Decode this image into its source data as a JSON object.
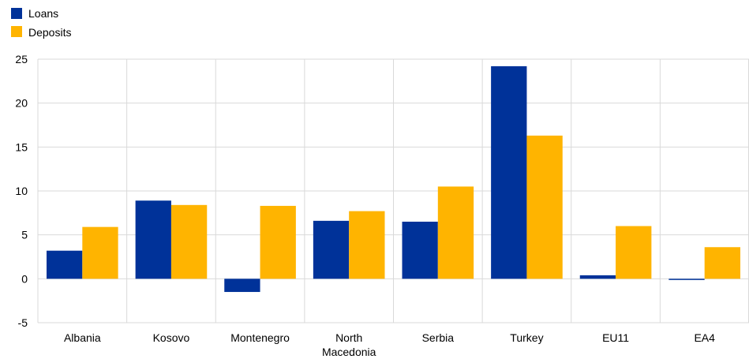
{
  "chart_data": {
    "type": "bar",
    "categories": [
      "Albania",
      "Kosovo",
      "Montenegro",
      "North Macedonia",
      "Serbia",
      "Turkey",
      "EU11",
      "EA4"
    ],
    "category_lines": [
      [
        "Albania"
      ],
      [
        "Kosovo"
      ],
      [
        "Montenegro"
      ],
      [
        "North",
        "Macedonia"
      ],
      [
        "Serbia"
      ],
      [
        "Turkey"
      ],
      [
        "EU11"
      ],
      [
        "EA4"
      ]
    ],
    "series": [
      {
        "name": "Loans",
        "color": "#003299",
        "values": [
          3.2,
          8.9,
          -1.5,
          6.6,
          6.5,
          24.2,
          0.4,
          -0.1
        ]
      },
      {
        "name": "Deposits",
        "color": "#FFB400",
        "values": [
          5.9,
          8.4,
          8.3,
          7.7,
          10.5,
          16.3,
          6.0,
          3.6
        ]
      }
    ],
    "ylim": [
      -5,
      25
    ],
    "yticks": [
      -5,
      0,
      5,
      10,
      15,
      20,
      25
    ],
    "ytick_labels": [
      "-5",
      "0",
      "5",
      "10",
      "15",
      "20",
      "25"
    ],
    "grid": true,
    "legend_position": "top-left",
    "title": "",
    "xlabel": "",
    "ylabel": ""
  }
}
